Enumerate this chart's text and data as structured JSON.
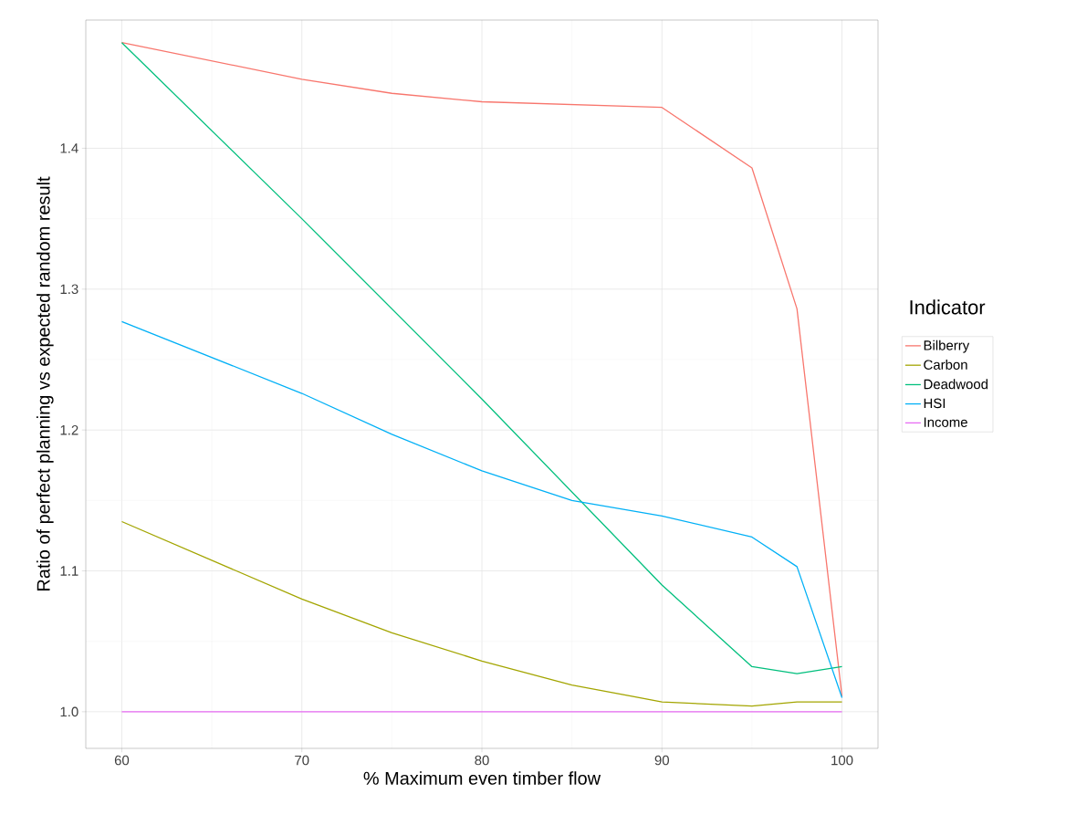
{
  "chart_data": {
    "type": "line",
    "xlabel": "% Maximum even timber flow",
    "ylabel": "Ratio of perfect planning vs expected random result",
    "legend_title": "Indicator",
    "xlim": [
      58,
      102
    ],
    "ylim": [
      0.974,
      1.491
    ],
    "xticks": [
      60,
      70,
      80,
      90,
      100
    ],
    "yticks": [
      {
        "value": 1.0,
        "label": "1.0"
      },
      {
        "value": 1.1,
        "label": "1.1"
      },
      {
        "value": 1.2,
        "label": "1.2"
      },
      {
        "value": 1.3,
        "label": "1.3"
      },
      {
        "value": 1.4,
        "label": "1.4"
      }
    ],
    "grid": true,
    "legend": "right",
    "marker": "none",
    "line_style": "solid",
    "series": [
      {
        "name": "Bilberry",
        "color": "#f8766d",
        "x": [
          60,
          70,
          75,
          80,
          90,
          95,
          97.5,
          100
        ],
        "values": [
          1.475,
          1.449,
          1.439,
          1.433,
          1.429,
          1.386,
          1.286,
          1.011
        ]
      },
      {
        "name": "Carbon",
        "color": "#a3a500",
        "x": [
          60,
          70,
          75,
          80,
          85,
          90,
          95,
          97.5,
          100
        ],
        "values": [
          1.135,
          1.08,
          1.056,
          1.036,
          1.019,
          1.007,
          1.004,
          1.007,
          1.007
        ]
      },
      {
        "name": "Deadwood",
        "color": "#00bf7d",
        "x": [
          60,
          70,
          80,
          90,
          95,
          97.5,
          100
        ],
        "values": [
          1.475,
          1.35,
          1.222,
          1.09,
          1.032,
          1.027,
          1.032
        ]
      },
      {
        "name": "HSI",
        "color": "#00b0f6",
        "x": [
          60,
          70,
          75,
          80,
          85,
          90,
          95,
          97.5,
          100
        ],
        "values": [
          1.277,
          1.226,
          1.197,
          1.171,
          1.15,
          1.139,
          1.124,
          1.103,
          1.01
        ]
      },
      {
        "name": "Income",
        "color": "#e76bf3",
        "x": [
          60,
          70,
          80,
          90,
          95,
          97.5,
          100
        ],
        "values": [
          1.0,
          1.0,
          1.0,
          1.0,
          1.0,
          1.0,
          1.0
        ]
      }
    ]
  }
}
